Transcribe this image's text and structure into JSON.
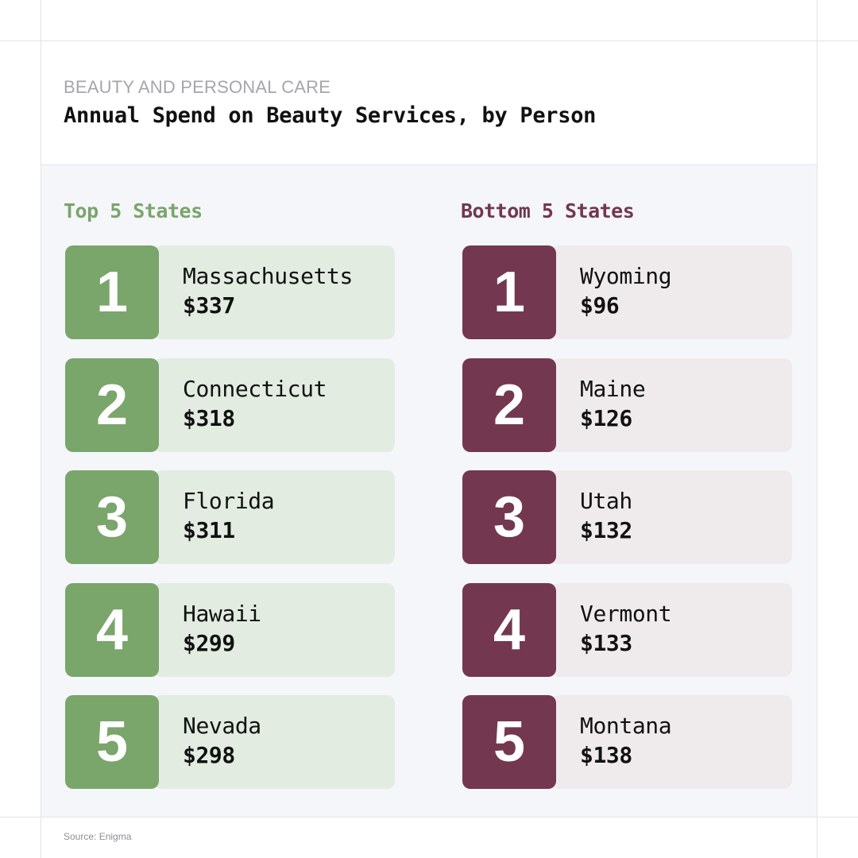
{
  "header": {
    "category": "BEAUTY AND PERSONAL CARE",
    "title": "Annual Spend on Beauty Services, by Person"
  },
  "top": {
    "heading": "Top 5 States",
    "color": "#7aa56b",
    "card_color": "#e2ece1",
    "items": [
      {
        "rank": "1",
        "state": "Massachusetts",
        "value": "$337"
      },
      {
        "rank": "2",
        "state": "Connecticut",
        "value": "$318"
      },
      {
        "rank": "3",
        "state": "Florida",
        "value": "$311"
      },
      {
        "rank": "4",
        "state": "Hawaii",
        "value": "$299"
      },
      {
        "rank": "5",
        "state": "Nevada",
        "value": "$298"
      }
    ]
  },
  "bottom": {
    "heading": "Bottom 5 States",
    "color": "#733750",
    "card_color": "#efebec",
    "items": [
      {
        "rank": "1",
        "state": "Wyoming",
        "value": "$96"
      },
      {
        "rank": "2",
        "state": "Maine",
        "value": "$126"
      },
      {
        "rank": "3",
        "state": "Utah",
        "value": "$132"
      },
      {
        "rank": "4",
        "state": "Vermont",
        "value": "$133"
      },
      {
        "rank": "5",
        "state": "Montana",
        "value": "$138"
      }
    ]
  },
  "footer": {
    "source": "Source: Enigma"
  }
}
